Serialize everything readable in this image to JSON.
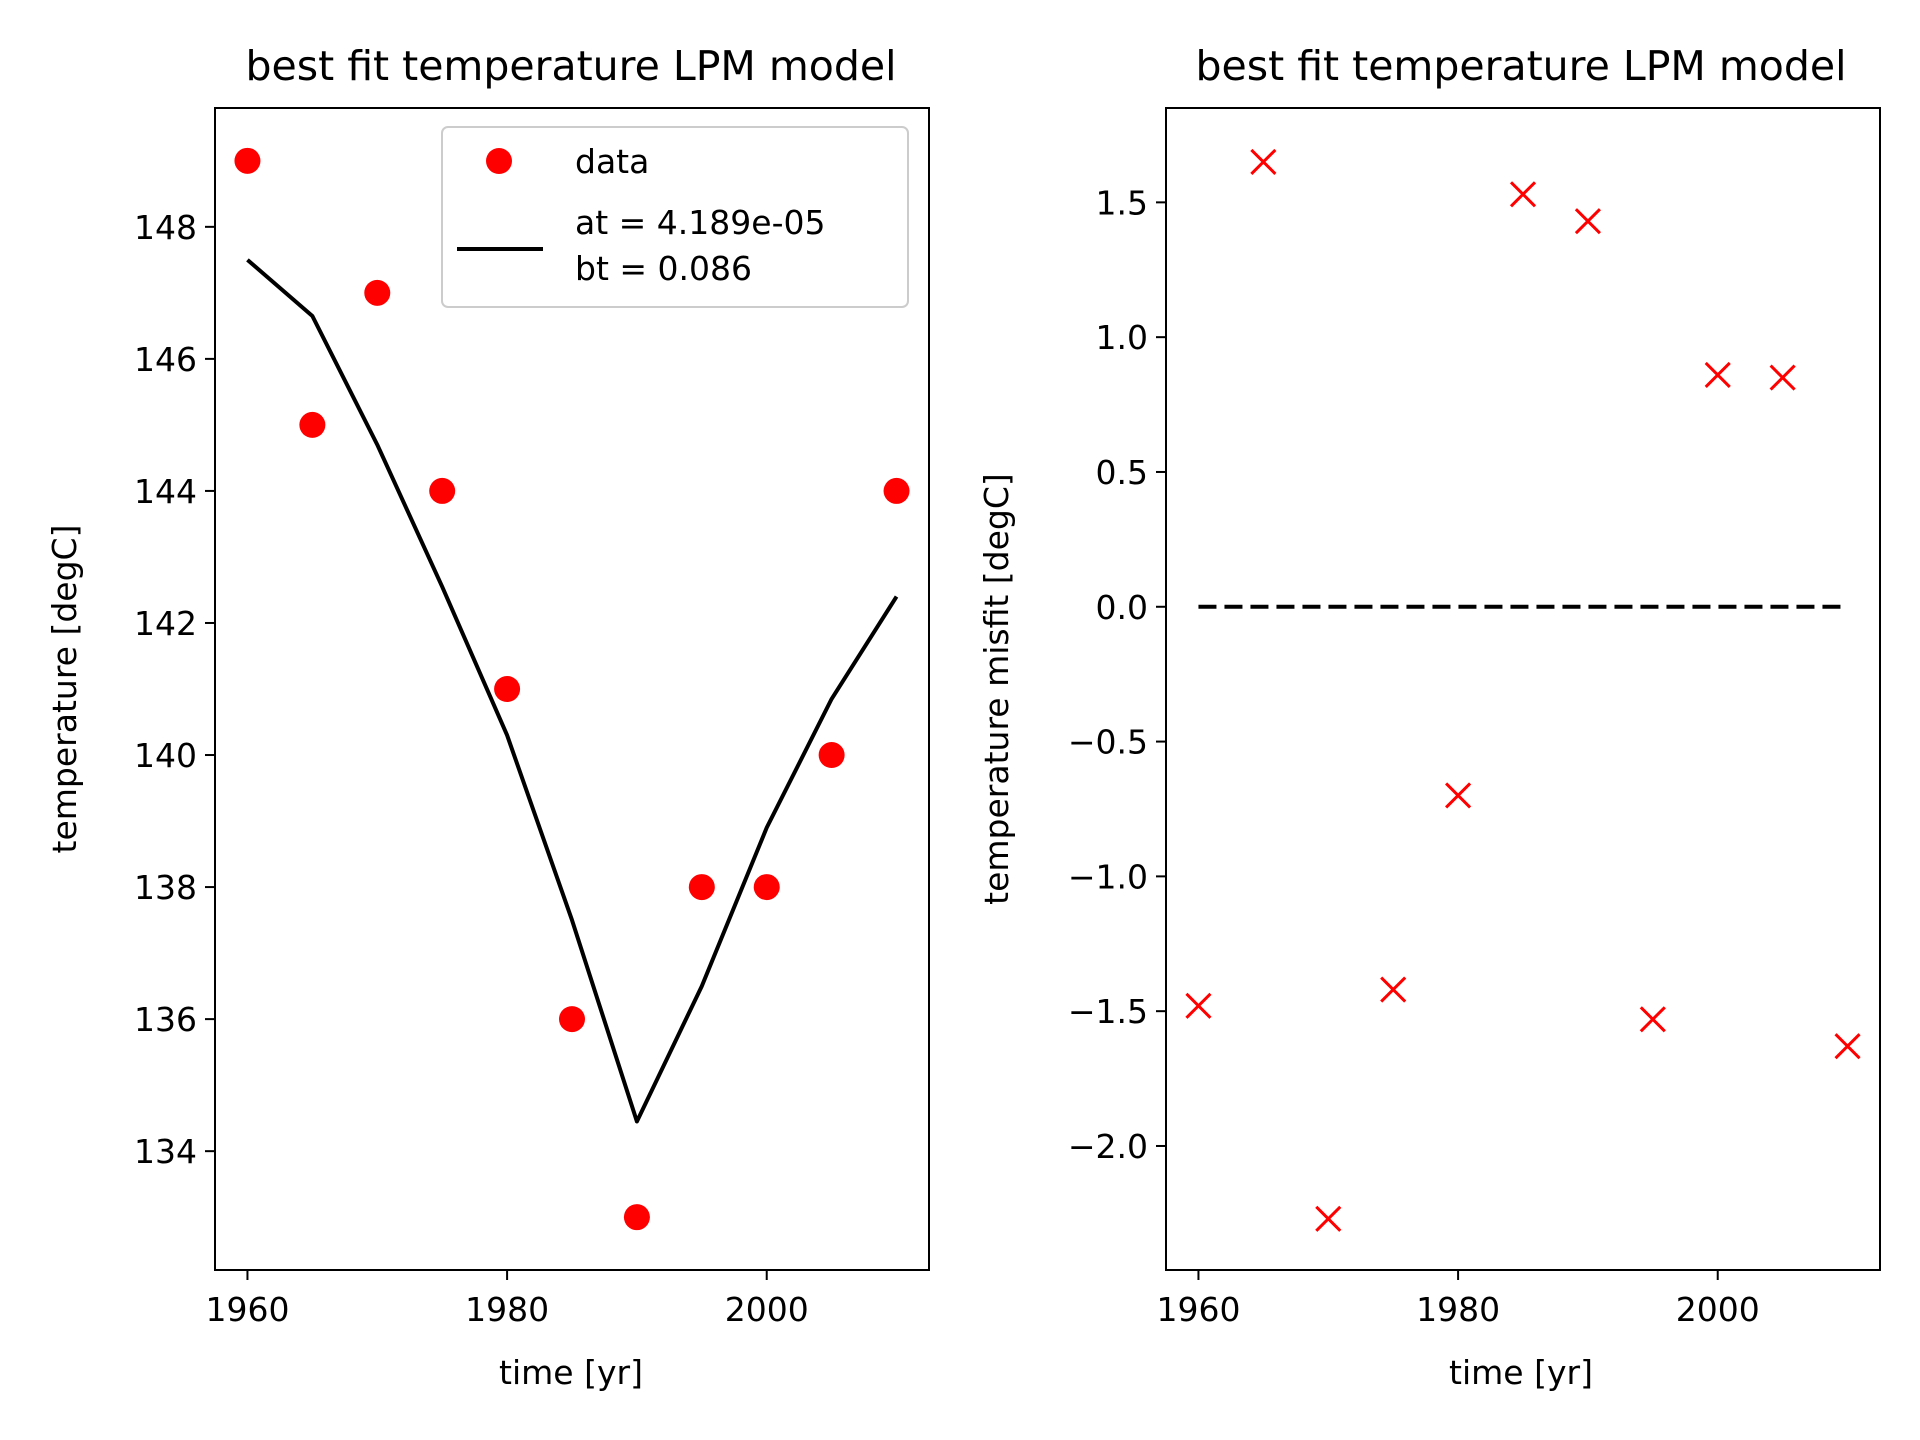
{
  "chart_data": [
    {
      "type": "line",
      "title": "best fit temperature LPM model",
      "xlabel": "time [yr]",
      "ylabel": "temperature [degC]",
      "xlim": [
        1957.5,
        2012.5
      ],
      "ylim": [
        132.2,
        149.8
      ],
      "xticks": [
        1960,
        1980,
        2000
      ],
      "yticks": [
        134,
        136,
        138,
        140,
        142,
        144,
        146,
        148
      ],
      "grid": false,
      "legend_position": "top-right",
      "series": [
        {
          "name": "data",
          "style": "markers-circle",
          "color": "#ff0000",
          "x": [
            1960,
            1965,
            1970,
            1975,
            1980,
            1985,
            1990,
            1995,
            2000,
            2005,
            2010
          ],
          "y": [
            149,
            145,
            147,
            144,
            141,
            136,
            133,
            138,
            138,
            140,
            144
          ]
        },
        {
          "name": "at = 4.189e-05\nbt = 0.086",
          "legend_lines": [
            "at = 4.189e-05",
            "bt = 0.086"
          ],
          "style": "line",
          "color": "#000000",
          "x": [
            1960,
            1965,
            1970,
            1975,
            1980,
            1985,
            1990,
            1995,
            2000,
            2005,
            2010
          ],
          "y": [
            147.5,
            146.65,
            144.7,
            142.55,
            140.3,
            137.5,
            134.45,
            136.5,
            138.9,
            140.85,
            142.4
          ]
        }
      ]
    },
    {
      "type": "scatter",
      "title": "best fit temperature LPM model",
      "xlabel": "time [yr]",
      "ylabel": "temperature misfit [degC]",
      "xlim": [
        1957.5,
        2012.5
      ],
      "ylim": [
        -2.46,
        1.85
      ],
      "xticks": [
        1960,
        1980,
        2000
      ],
      "yticks": [
        -2.0,
        -1.5,
        -1.0,
        -0.5,
        0.0,
        0.5,
        1.0,
        1.5
      ],
      "ytick_labels": [
        "−2.0",
        "−1.5",
        "−1.0",
        "−0.5",
        "0.0",
        "0.5",
        "1.0",
        "1.5"
      ],
      "grid": false,
      "series": [
        {
          "style": "markers-x",
          "color": "#ff0000",
          "x": [
            1960,
            1965,
            1970,
            1975,
            1980,
            1985,
            1990,
            1995,
            2000,
            2005,
            2010
          ],
          "y": [
            -1.48,
            1.65,
            -2.27,
            -1.42,
            -0.7,
            1.53,
            1.43,
            -1.53,
            0.86,
            0.85,
            -1.63
          ]
        },
        {
          "style": "dashed-line",
          "color": "#000000",
          "x": [
            1960,
            2010
          ],
          "y": [
            0,
            0
          ]
        }
      ]
    }
  ]
}
